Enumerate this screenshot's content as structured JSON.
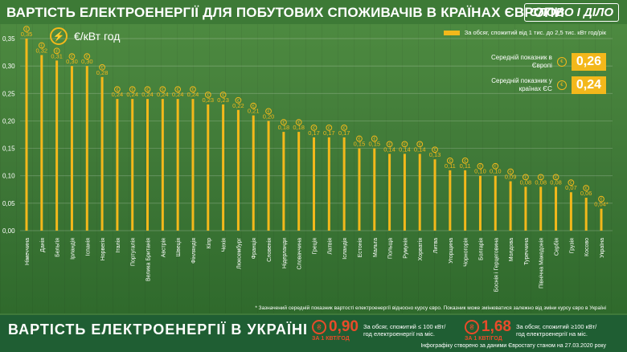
{
  "header": {
    "title": "ВАРТІСТЬ ЕЛЕКТРОЕНЕРГІЇ ДЛЯ ПОБУТОВИХ СПОЖИВАЧІВ В КРАЇНАХ ЄВРОПИ",
    "logo": "СЛОВО І ДІЛО"
  },
  "unit_label": "€/кВт год",
  "legend": {
    "text": "За обсяг, спожитий від 1 тис. до 2,5 тис. кВт год/рік"
  },
  "averages": [
    {
      "label": "Середній показник в Європі",
      "value": "0,26"
    },
    {
      "label": "Середній показник у країнах ЄС",
      "value": "0,24"
    }
  ],
  "footnote": "* Зазначений середній показник вартості електроенергії відносно курсу євро. Показник може змінюватися залежно від зміни курсу євро в Україні",
  "ukraine": {
    "title": "ВАРТІСТЬ ЕЛЕКТРОЕНЕРГІЇ В УКРАЇНІ",
    "items": [
      {
        "price": "0,90",
        "unit": "ЗА 1 КВТ/ГОД",
        "desc": "За обсяг, спожитий ≤ 100 кВт/год електроенергії на міс."
      },
      {
        "price": "1,68",
        "unit": "ЗА 1 КВТ/ГОД",
        "desc": "За обсяг, спожитий ≥100 кВт/год електроенергії на міс."
      }
    ]
  },
  "credit": "Інфографіку створено за даними Євростату станом на 27.03.2020 року",
  "colors": {
    "bar": "#f3b81b",
    "accent_ua": "#e94b2a",
    "background": "#3f7a3a"
  },
  "chart_data": {
    "type": "bar",
    "ylim": [
      0,
      0.35
    ],
    "yticks": [
      "0,00",
      "0,05",
      "0,10",
      "0,15",
      "0,20",
      "0,25",
      "0,30",
      "0,35"
    ],
    "grid": true,
    "categories": [
      "Німеччина",
      "Данія",
      "Бельгія",
      "Ірландія",
      "Іспанія",
      "Норвегія",
      "Італія",
      "Португалія",
      "Велика Британія",
      "Австрія",
      "Швеція",
      "Фінляндія",
      "Кіпр",
      "Чехія",
      "Люксембург",
      "Франція",
      "Словенія",
      "Нідерланди",
      "Словаччина",
      "Греція",
      "Латвія",
      "Ісландія",
      "Естонія",
      "Мальта",
      "Польща",
      "Румунія",
      "Хорватія",
      "Литва",
      "Угорщина",
      "Чорногорія",
      "Болгарія",
      "Боснія і Герцеговина",
      "Молдова",
      "Туреччина",
      "Північна Македонія",
      "Сербія",
      "Грузія",
      "Косово",
      "Україна"
    ],
    "values": [
      0.35,
      0.32,
      0.31,
      0.3,
      0.3,
      0.28,
      0.24,
      0.24,
      0.24,
      0.24,
      0.24,
      0.24,
      0.23,
      0.23,
      0.22,
      0.21,
      0.2,
      0.18,
      0.18,
      0.17,
      0.17,
      0.17,
      0.15,
      0.15,
      0.14,
      0.14,
      0.14,
      0.13,
      0.11,
      0.11,
      0.1,
      0.1,
      0.09,
      0.08,
      0.08,
      0.08,
      0.07,
      0.06,
      0.04
    ],
    "value_labels": [
      "0,35",
      "0,32",
      "0,31",
      "0,30",
      "0,30",
      "0,28",
      "0,24",
      "0,24",
      "0,24",
      "0,24",
      "0,24",
      "0,24",
      "0,23",
      "0,23",
      "0,22",
      "0,21",
      "0,20",
      "0,18",
      "0,18",
      "0,17",
      "0,17",
      "0,17",
      "0,15",
      "0,15",
      "0,14",
      "0,14",
      "0,14",
      "0,13",
      "0,11",
      "0,11",
      "0,10",
      "0,10",
      "0,09",
      "0,08",
      "0,08",
      "0,08",
      "0,07",
      "0,06",
      "0,04*"
    ]
  }
}
